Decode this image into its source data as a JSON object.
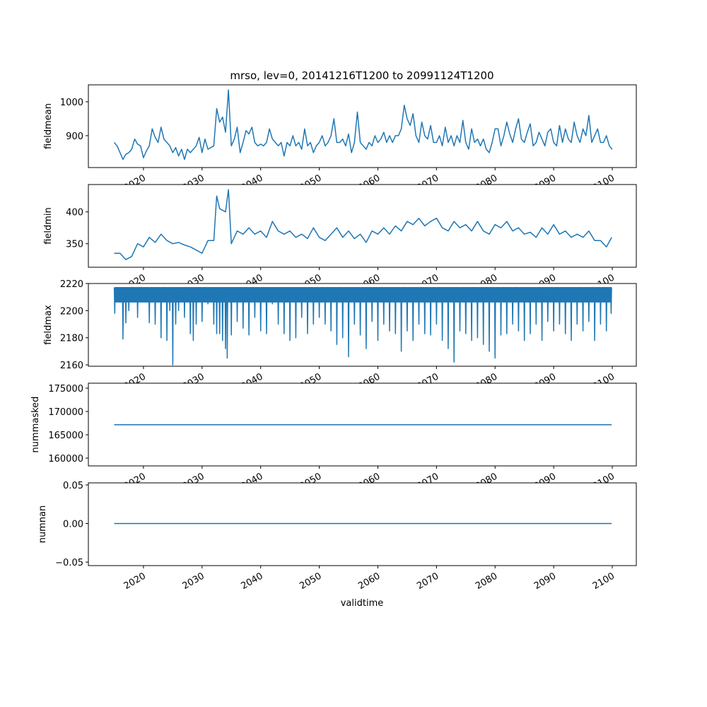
{
  "chart_data": {
    "type": "line",
    "title": "mrso, lev=0, 20141216T1200 to 20991124T1200",
    "xlabel": "validtime",
    "xlim": [
      2010.6,
      2104.1
    ],
    "xticks": [
      2020,
      2030,
      2040,
      2050,
      2060,
      2070,
      2080,
      2090,
      2100
    ],
    "xtick_labels": [
      "2020",
      "2030",
      "2040",
      "2050",
      "2060",
      "2070",
      "2080",
      "2090",
      "2100"
    ],
    "line_color": "#1f77b4",
    "panels": [
      {
        "ylabel": "fieldmean",
        "ylim": [
          806,
          1050
        ],
        "yticks": [
          900,
          1000
        ],
        "ytick_labels": [
          "900",
          "1000"
        ],
        "kind": "series",
        "start": 2015,
        "step": 0.5,
        "values": [
          880,
          870,
          850,
          830,
          845,
          850,
          860,
          890,
          875,
          870,
          835,
          855,
          870,
          920,
          895,
          880,
          925,
          890,
          880,
          870,
          850,
          865,
          840,
          860,
          830,
          860,
          850,
          860,
          870,
          895,
          850,
          890,
          860,
          865,
          870,
          980,
          940,
          955,
          910,
          1035,
          870,
          890,
          925,
          850,
          880,
          915,
          905,
          925,
          880,
          870,
          875,
          870,
          880,
          920,
          890,
          880,
          870,
          880,
          840,
          880,
          870,
          900,
          870,
          880,
          860,
          920,
          870,
          880,
          850,
          870,
          880,
          900,
          870,
          880,
          900,
          950,
          880,
          880,
          890,
          870,
          905,
          850,
          880,
          970,
          880,
          870,
          860,
          880,
          870,
          900,
          880,
          890,
          910,
          880,
          900,
          880,
          900,
          900,
          920,
          990,
          950,
          930,
          965,
          900,
          880,
          940,
          900,
          890,
          930,
          880,
          880,
          900,
          870,
          925,
          880,
          900,
          870,
          900,
          880,
          945,
          880,
          860,
          920,
          880,
          890,
          870,
          890,
          860,
          850,
          880,
          920,
          920,
          870,
          900,
          940,
          905,
          880,
          920,
          950,
          890,
          880,
          910,
          935,
          870,
          880,
          910,
          890,
          870,
          910,
          920,
          880,
          870,
          930,
          880,
          920,
          890,
          880,
          940,
          900,
          880,
          920,
          900,
          960,
          880,
          900,
          920,
          880,
          880,
          900,
          870,
          860
        ]
      },
      {
        "ylabel": "fieldmin",
        "ylim": [
          313,
          443
        ],
        "yticks": [
          350,
          400
        ],
        "ytick_labels": [
          "350",
          "400"
        ],
        "kind": "points",
        "points": [
          [
            2015,
            335
          ],
          [
            2016,
            335
          ],
          [
            2017,
            325
          ],
          [
            2018,
            330
          ],
          [
            2019,
            350
          ],
          [
            2020,
            345
          ],
          [
            2021,
            360
          ],
          [
            2022,
            352
          ],
          [
            2023,
            365
          ],
          [
            2024,
            355
          ],
          [
            2025,
            350
          ],
          [
            2026,
            352
          ],
          [
            2027,
            348
          ],
          [
            2028,
            345
          ],
          [
            2029,
            340
          ],
          [
            2030,
            335
          ],
          [
            2031,
            355
          ],
          [
            2032,
            355
          ],
          [
            2032.5,
            425
          ],
          [
            2033,
            405
          ],
          [
            2034,
            400
          ],
          [
            2034.5,
            435
          ],
          [
            2035,
            350
          ],
          [
            2036,
            370
          ],
          [
            2037,
            365
          ],
          [
            2038,
            375
          ],
          [
            2039,
            365
          ],
          [
            2040,
            370
          ],
          [
            2041,
            360
          ],
          [
            2042,
            385
          ],
          [
            2043,
            370
          ],
          [
            2044,
            365
          ],
          [
            2045,
            370
          ],
          [
            2046,
            360
          ],
          [
            2047,
            365
          ],
          [
            2048,
            358
          ],
          [
            2049,
            375
          ],
          [
            2050,
            360
          ],
          [
            2051,
            355
          ],
          [
            2052,
            365
          ],
          [
            2053,
            375
          ],
          [
            2054,
            360
          ],
          [
            2055,
            370
          ],
          [
            2056,
            358
          ],
          [
            2057,
            365
          ],
          [
            2058,
            352
          ],
          [
            2059,
            370
          ],
          [
            2060,
            365
          ],
          [
            2061,
            375
          ],
          [
            2062,
            365
          ],
          [
            2063,
            378
          ],
          [
            2064,
            370
          ],
          [
            2065,
            385
          ],
          [
            2066,
            380
          ],
          [
            2067,
            390
          ],
          [
            2068,
            378
          ],
          [
            2069,
            385
          ],
          [
            2070,
            390
          ],
          [
            2071,
            375
          ],
          [
            2072,
            370
          ],
          [
            2073,
            385
          ],
          [
            2074,
            375
          ],
          [
            2075,
            380
          ],
          [
            2076,
            370
          ],
          [
            2077,
            385
          ],
          [
            2078,
            370
          ],
          [
            2079,
            365
          ],
          [
            2080,
            380
          ],
          [
            2081,
            375
          ],
          [
            2082,
            385
          ],
          [
            2083,
            370
          ],
          [
            2084,
            375
          ],
          [
            2085,
            365
          ],
          [
            2086,
            368
          ],
          [
            2087,
            360
          ],
          [
            2088,
            375
          ],
          [
            2089,
            365
          ],
          [
            2090,
            380
          ],
          [
            2091,
            365
          ],
          [
            2092,
            370
          ],
          [
            2093,
            360
          ],
          [
            2094,
            365
          ],
          [
            2095,
            360
          ],
          [
            2096,
            370
          ],
          [
            2097,
            355
          ],
          [
            2098,
            355
          ],
          [
            2099,
            345
          ],
          [
            2099.9,
            360
          ]
        ]
      },
      {
        "ylabel": "fieldmax",
        "ylim": [
          2159,
          2220
        ],
        "yticks": [
          2160,
          2180,
          2200,
          2220
        ],
        "ytick_labels": [
          "2160",
          "2180",
          "2200",
          "2220"
        ],
        "kind": "dips",
        "top": 2217,
        "band_low": 2206,
        "range": [
          2015,
          2099.9
        ],
        "dips": [
          [
            2015.1,
            2198
          ],
          [
            2016,
            2212
          ],
          [
            2016.5,
            2179
          ],
          [
            2017,
            2191
          ],
          [
            2017.5,
            2200
          ],
          [
            2018.5,
            2210
          ],
          [
            2019,
            2195
          ],
          [
            2020,
            2208
          ],
          [
            2021,
            2191
          ],
          [
            2022,
            2190
          ],
          [
            2023,
            2180
          ],
          [
            2024,
            2178
          ],
          [
            2024.5,
            2200
          ],
          [
            2025,
            2160
          ],
          [
            2025.5,
            2190
          ],
          [
            2026,
            2200
          ],
          [
            2027,
            2195
          ],
          [
            2028,
            2183
          ],
          [
            2028.5,
            2178
          ],
          [
            2029,
            2190
          ],
          [
            2030,
            2192
          ],
          [
            2031,
            2205
          ],
          [
            2032,
            2190
          ],
          [
            2032.5,
            2183
          ],
          [
            2033,
            2183
          ],
          [
            2033.5,
            2178
          ],
          [
            2034,
            2172
          ],
          [
            2034.3,
            2165
          ],
          [
            2035,
            2182
          ],
          [
            2036,
            2192
          ],
          [
            2037,
            2187
          ],
          [
            2038,
            2182
          ],
          [
            2039,
            2195
          ],
          [
            2040,
            2185
          ],
          [
            2041,
            2183
          ],
          [
            2042,
            2205
          ],
          [
            2043,
            2190
          ],
          [
            2044,
            2183
          ],
          [
            2045,
            2178
          ],
          [
            2046,
            2180
          ],
          [
            2047,
            2195
          ],
          [
            2048,
            2183
          ],
          [
            2049,
            2190
          ],
          [
            2050,
            2195
          ],
          [
            2051,
            2190
          ],
          [
            2052,
            2185
          ],
          [
            2053,
            2175
          ],
          [
            2054,
            2180
          ],
          [
            2055,
            2166
          ],
          [
            2056,
            2190
          ],
          [
            2057,
            2182
          ],
          [
            2058,
            2172
          ],
          [
            2059,
            2192
          ],
          [
            2060,
            2178
          ],
          [
            2061,
            2190
          ],
          [
            2062,
            2185
          ],
          [
            2063,
            2183
          ],
          [
            2064,
            2170
          ],
          [
            2065,
            2185
          ],
          [
            2066,
            2178
          ],
          [
            2067,
            2190
          ],
          [
            2068,
            2183
          ],
          [
            2069,
            2182
          ],
          [
            2070,
            2190
          ],
          [
            2071,
            2178
          ],
          [
            2072,
            2172
          ],
          [
            2073,
            2162
          ],
          [
            2074,
            2185
          ],
          [
            2075,
            2183
          ],
          [
            2076,
            2178
          ],
          [
            2077,
            2180
          ],
          [
            2078,
            2175
          ],
          [
            2079,
            2170
          ],
          [
            2080,
            2165
          ],
          [
            2081,
            2182
          ],
          [
            2082,
            2183
          ],
          [
            2083,
            2190
          ],
          [
            2084,
            2185
          ],
          [
            2085,
            2178
          ],
          [
            2086,
            2183
          ],
          [
            2087,
            2190
          ],
          [
            2088,
            2178
          ],
          [
            2089,
            2192
          ],
          [
            2090,
            2185
          ],
          [
            2091,
            2190
          ],
          [
            2092,
            2183
          ],
          [
            2093,
            2178
          ],
          [
            2094,
            2190
          ],
          [
            2095,
            2185
          ],
          [
            2096,
            2192
          ],
          [
            2097,
            2178
          ],
          [
            2098,
            2190
          ],
          [
            2099,
            2185
          ],
          [
            2099.8,
            2198
          ]
        ]
      },
      {
        "ylabel": "nummasked",
        "ylim": [
          158330,
          176060
        ],
        "yticks": [
          160000,
          165000,
          170000,
          175000
        ],
        "ytick_labels": [
          "160000",
          "165000",
          "170000",
          "175000"
        ],
        "kind": "points",
        "points": [
          [
            2015,
            167150
          ],
          [
            2099.9,
            167150
          ]
        ]
      },
      {
        "ylabel": "numnan",
        "ylim": [
          -0.0545,
          0.0527
        ],
        "yticks": [
          -0.05,
          0.0,
          0.05
        ],
        "ytick_labels": [
          "−0.05",
          "0.00",
          "0.05"
        ],
        "kind": "points",
        "points": [
          [
            2015,
            0
          ],
          [
            2099.9,
            0
          ]
        ]
      }
    ]
  }
}
